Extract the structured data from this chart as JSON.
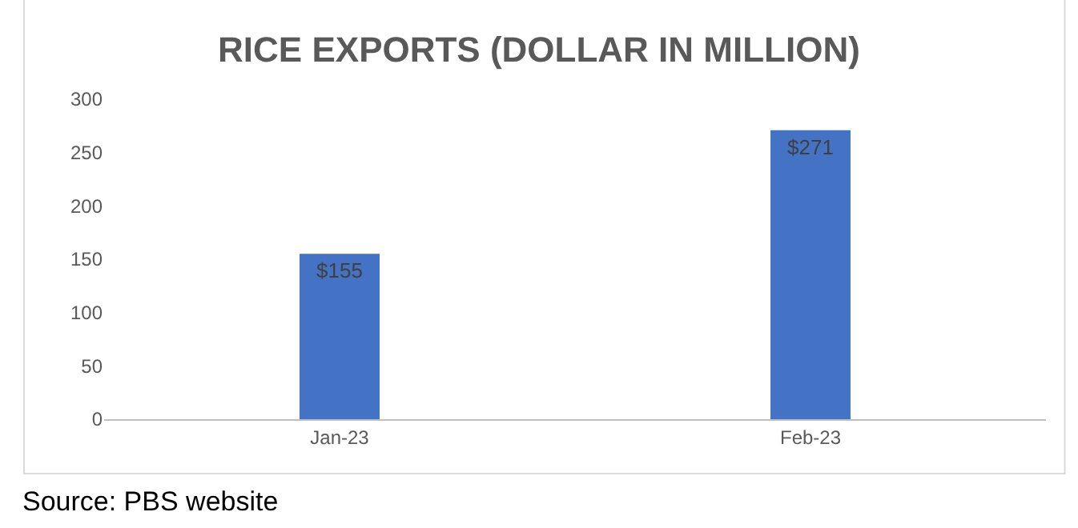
{
  "chart_data": {
    "type": "bar",
    "title": "RICE EXPORTS (DOLLAR IN MILLION)",
    "categories": [
      "Jan-23",
      "Feb-23"
    ],
    "values": [
      155,
      271
    ],
    "value_labels": [
      "$155",
      "$271"
    ],
    "color": "#4472c4",
    "ylim": [
      0,
      300
    ],
    "yticks": [
      0,
      50,
      100,
      150,
      200,
      250,
      300
    ],
    "grid": false,
    "legend": false,
    "annotations": [
      "Source: PBS website"
    ]
  }
}
